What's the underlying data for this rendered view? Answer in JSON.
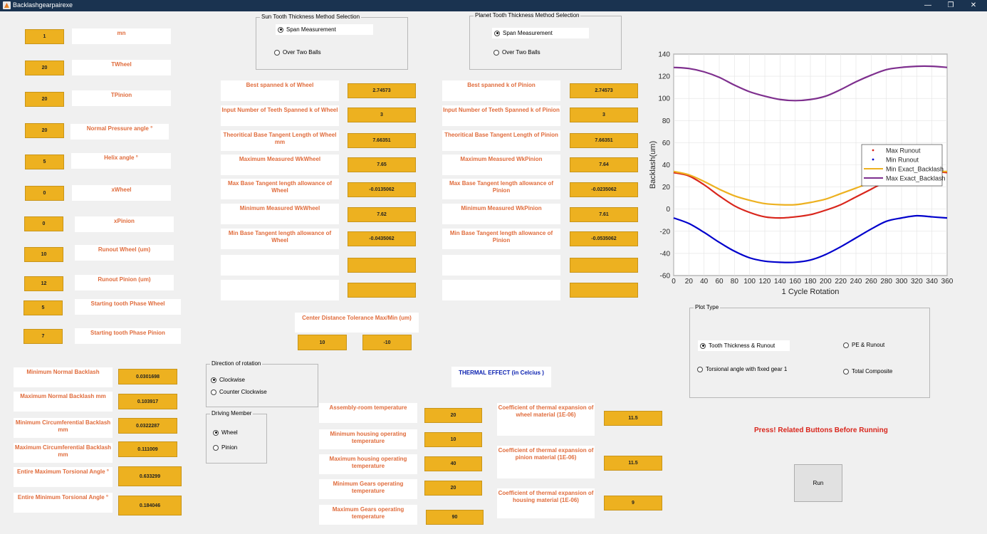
{
  "window": {
    "title": "Backlashgearpairexe",
    "minimize": "—",
    "restore": "❐",
    "close": "✕"
  },
  "params": [
    {
      "label": "mn",
      "value": "1"
    },
    {
      "label": "TWheel",
      "value": "20"
    },
    {
      "label": "TPinion",
      "value": "20"
    },
    {
      "label": "Normal Pressure angle °",
      "value": "20"
    },
    {
      "label": "Helix angle °",
      "value": "5"
    },
    {
      "label": "xWheel",
      "value": "0"
    },
    {
      "label": "xPinion",
      "value": "0"
    },
    {
      "label": "Runout Wheel (um)",
      "value": "10"
    },
    {
      "label": "Runout Pinion (um)",
      "value": "12"
    },
    {
      "label": "Starting tooth Phase  Wheel",
      "value": "5"
    },
    {
      "label": "Starting tooth Phase  Pinion",
      "value": "7"
    }
  ],
  "results": [
    {
      "label": "Minimum Normal Backlash",
      "value": "0.0301698"
    },
    {
      "label": "Maximum Normal Backlash mm",
      "value": "0.103917"
    },
    {
      "label": "Minimum Circumferential Backlash mm",
      "value": "0.0322287"
    },
    {
      "label": "Maximum Circumferential Backlash mm",
      "value": "0.111009"
    },
    {
      "label": "Entire Maximum Torsional Angle °",
      "value": "0.633299"
    },
    {
      "label": "Entire Minimum Torsional Angle °",
      "value": "0.184046"
    }
  ],
  "sun": {
    "group_title": "Sun Tooth Thickness Method Selection",
    "opt1": "Span Measurement",
    "opt2": "Over Two Balls",
    "rows": [
      {
        "label": "Best spanned k of Wheel",
        "value": "2.74573"
      },
      {
        "label": "Input Number of Teeth Spanned k of Wheel",
        "value": "3"
      },
      {
        "label": "Theoritical Base Tangent Length of Wheel mm",
        "value": "7.66351"
      },
      {
        "label": "Maximum Measured WkWheel",
        "value": "7.65"
      },
      {
        "label": "Max Base Tangent length allowance of Wheel",
        "value": "-0.0135062"
      },
      {
        "label": "Minimum Measured WkWheel",
        "value": "7.62"
      },
      {
        "label": "Min Base Tangent length allowance of Wheel",
        "value": "-0.0435062"
      },
      {
        "label": "",
        "value": ""
      },
      {
        "label": "",
        "value": ""
      }
    ]
  },
  "planet": {
    "group_title": "Planet Tooth Thickness Method Selection",
    "opt1": "Span Measurement",
    "opt2": "Over Two Balls",
    "rows": [
      {
        "label": "Best spanned k of Pinion",
        "value": "2.74573"
      },
      {
        "label": "Input Number of Teeth Spanned k of Pinion",
        "value": "3"
      },
      {
        "label": "Theoritical Base Tangent Length of Pinion",
        "value": "7.66351"
      },
      {
        "label": "Maximum Measured WkPinion",
        "value": "7.64"
      },
      {
        "label": "Max Base Tangent length allowance of Pinion",
        "value": "-0.0235062"
      },
      {
        "label": "Minimum Measured WkPinion",
        "value": "7.61"
      },
      {
        "label": "Min Base Tangent length allowance of Pinion",
        "value": "-0.0535062"
      },
      {
        "label": "",
        "value": ""
      },
      {
        "label": "",
        "value": ""
      }
    ]
  },
  "center": {
    "label": "Center Distance Tolerance Max/Min (um)",
    "max": "10",
    "min": "-10"
  },
  "direction": {
    "title": "Direction of rotation",
    "opt1": "Clockwise",
    "opt2": "Counter Clockwise"
  },
  "driving": {
    "title": "Driving Member",
    "opt1": "Wheel",
    "opt2": "Pinion"
  },
  "thermal": {
    "title": "THERMAL EFFECT (in Celcius )",
    "temps": [
      {
        "label": "Assembly-room temperature",
        "value": "20"
      },
      {
        "label": "Minimum housing operating temperature",
        "value": "10"
      },
      {
        "label": "Maximum housing operating temperature",
        "value": "40"
      },
      {
        "label": "Minimum Gears operating temperature",
        "value": "20"
      },
      {
        "label": "Maximum Gears operating temperature",
        "value": "90"
      }
    ],
    "coeffs": [
      {
        "label": "Coefficient of thermal expansion of wheel material (1E-06)",
        "value": "11.5"
      },
      {
        "label": "Coefficient of thermal expansion of pinion material (1E-06)",
        "value": "11.5"
      },
      {
        "label": "Coefficient of thermal expansion of housing material (1E-06)",
        "value": "9"
      }
    ]
  },
  "plot_type": {
    "title": "Plot Type",
    "opt1": "Tooth Thickness & Runout",
    "opt2": "PE & Runout",
    "opt3": "Torsional angle with fixed gear 1",
    "opt4": "Total Composite"
  },
  "press_text": "Press! Related Buttons Before Running",
  "run_label": "Run",
  "chart_data": {
    "type": "line",
    "xlabel": "1 Cycle Rotation",
    "ylabel": "Backlash(um)",
    "xlim": [
      0,
      360
    ],
    "ylim": [
      -60,
      140
    ],
    "xticks": [
      0,
      20,
      40,
      60,
      80,
      100,
      120,
      140,
      160,
      180,
      200,
      220,
      240,
      260,
      280,
      300,
      320,
      340,
      360
    ],
    "yticks": [
      -60,
      -40,
      -20,
      0,
      20,
      40,
      60,
      80,
      100,
      120,
      140
    ],
    "grid": true,
    "legend_position": "right",
    "x": [
      0,
      20,
      40,
      60,
      80,
      100,
      120,
      140,
      160,
      180,
      200,
      220,
      240,
      260,
      280,
      300,
      320,
      340,
      360
    ],
    "series": [
      {
        "name": "Max Runout",
        "color": "#d9261c",
        "values": [
          33,
          30,
          22,
          12,
          3,
          -3,
          -7,
          -8,
          -7,
          -5,
          -1,
          4,
          11,
          18,
          25,
          30,
          33,
          34,
          33
        ]
      },
      {
        "name": "Min Runout",
        "color": "#0000cc",
        "values": [
          -8,
          -13,
          -21,
          -30,
          -38,
          -44,
          -47,
          -48,
          -48,
          -46,
          -41,
          -34,
          -26,
          -18,
          -11,
          -8,
          -6,
          -7,
          -8
        ]
      },
      {
        "name": "Min Exact_Backlash",
        "color": "#edb120",
        "values": [
          34,
          31,
          25,
          18,
          12,
          8,
          5,
          4,
          4,
          6,
          9,
          14,
          19,
          24,
          28,
          31,
          33,
          34,
          34
        ]
      },
      {
        "name": "Max Exact_Backlash",
        "color": "#7e2f8e",
        "values": [
          128,
          127,
          124,
          119,
          112,
          106,
          102,
          99,
          98,
          99,
          102,
          108,
          115,
          121,
          126,
          128,
          129,
          129,
          128
        ]
      }
    ]
  }
}
